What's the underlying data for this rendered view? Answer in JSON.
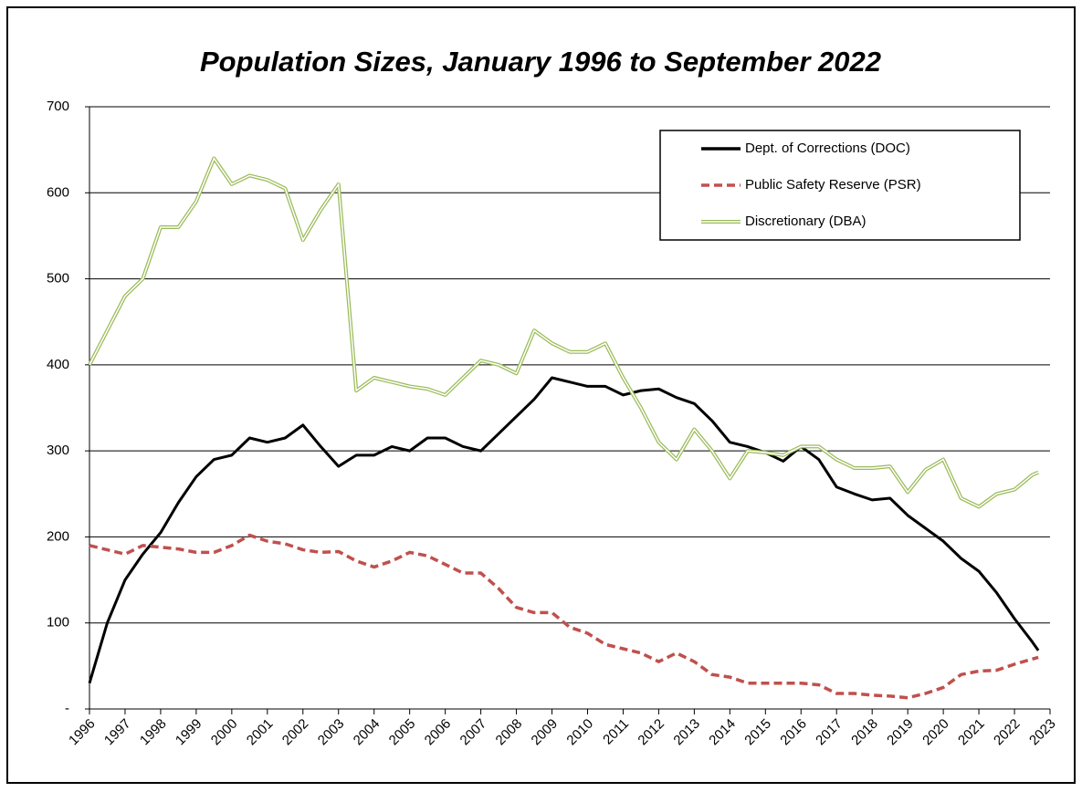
{
  "chart_data": {
    "type": "line",
    "title": "Population Sizes, January 1996 to September 2022",
    "x": [
      1996,
      1996.5,
      1997,
      1997.5,
      1998,
      1998.5,
      1999,
      1999.5,
      2000,
      2000.5,
      2001,
      2001.5,
      2002,
      2002.5,
      2003,
      2003.5,
      2004,
      2004.5,
      2005,
      2005.5,
      2006,
      2006.5,
      2007,
      2007.5,
      2008,
      2008.5,
      2009,
      2009.5,
      2010,
      2010.5,
      2011,
      2011.5,
      2012,
      2012.5,
      2013,
      2013.5,
      2014,
      2014.5,
      2015,
      2015.5,
      2016,
      2016.5,
      2017,
      2017.5,
      2018,
      2018.5,
      2019,
      2019.5,
      2020,
      2020.5,
      2021,
      2021.5,
      2022,
      2022.5,
      2022.67
    ],
    "series": [
      {
        "name": "Dept. of Corrections (DOC)",
        "color": "#000000",
        "line_style": "solid",
        "values": [
          30,
          100,
          150,
          180,
          205,
          240,
          270,
          290,
          295,
          315,
          310,
          315,
          330,
          305,
          282,
          295,
          295,
          305,
          300,
          315,
          315,
          305,
          300,
          320,
          340,
          360,
          385,
          380,
          375,
          375,
          365,
          370,
          372,
          362,
          355,
          335,
          310,
          305,
          298,
          288,
          305,
          290,
          258,
          250,
          243,
          245,
          225,
          210,
          195,
          175,
          160,
          135,
          105,
          78,
          68
        ]
      },
      {
        "name": "Public Safety Reserve (PSR)",
        "color": "#c0504d",
        "line_style": "dashed",
        "values": [
          190,
          185,
          180,
          190,
          188,
          186,
          182,
          182,
          190,
          202,
          195,
          192,
          185,
          182,
          183,
          172,
          165,
          172,
          182,
          178,
          168,
          158,
          158,
          140,
          118,
          112,
          112,
          95,
          88,
          75,
          70,
          65,
          55,
          65,
          55,
          40,
          37,
          30,
          30,
          30,
          30,
          28,
          18,
          18,
          16,
          15,
          13,
          18,
          25,
          40,
          44,
          45,
          52,
          58,
          60
        ]
      },
      {
        "name": "Discretionary (DBA)",
        "color": "#9bbb59",
        "line_style": "double",
        "values": [
          400,
          440,
          480,
          500,
          560,
          560,
          590,
          640,
          610,
          620,
          615,
          605,
          545,
          580,
          610,
          370,
          385,
          380,
          375,
          372,
          365,
          385,
          405,
          400,
          390,
          440,
          425,
          415,
          415,
          425,
          385,
          350,
          310,
          290,
          325,
          300,
          268,
          300,
          298,
          295,
          305,
          305,
          290,
          280,
          280,
          282,
          252,
          278,
          290,
          245,
          235,
          250,
          255,
          272,
          275
        ]
      }
    ],
    "xlim": [
      1996,
      2023
    ],
    "xticks": [
      1996,
      1997,
      1998,
      1999,
      2000,
      2001,
      2002,
      2003,
      2004,
      2005,
      2006,
      2007,
      2008,
      2009,
      2010,
      2011,
      2012,
      2013,
      2014,
      2015,
      2016,
      2017,
      2018,
      2019,
      2020,
      2021,
      2022,
      2023
    ],
    "ylim": [
      0,
      700
    ],
    "yticks": [
      {
        "value": 0,
        "label": "-"
      },
      100,
      200,
      300,
      400,
      500,
      600,
      700
    ],
    "grid": true,
    "legend_position": "top-right"
  }
}
